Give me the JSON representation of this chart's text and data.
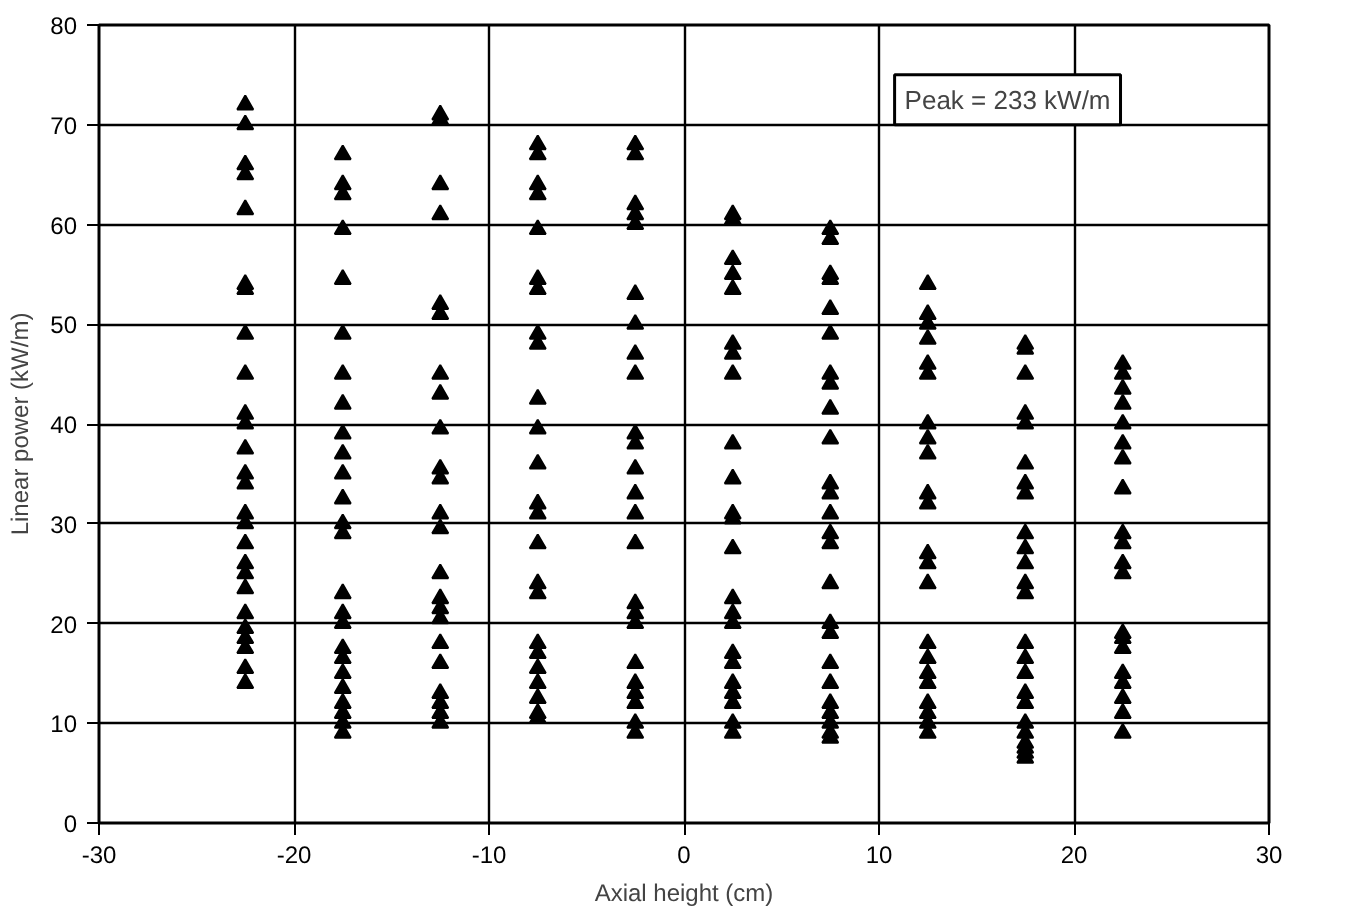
{
  "chart_data": {
    "type": "scatter",
    "xlabel": "Axial height (cm)",
    "ylabel": "Linear power (kW/m)",
    "xlim": [
      -30,
      30
    ],
    "xticks": [
      -30,
      -20,
      -10,
      0,
      10,
      20,
      30
    ],
    "ylim": [
      0,
      80
    ],
    "yticks": [
      0,
      10,
      20,
      30,
      40,
      50,
      60,
      70,
      80
    ],
    "grid": true,
    "marker": "triangle",
    "annotations": [
      "Peak = 233 kW/m"
    ],
    "series": [
      {
        "color": "#000000",
        "x": [
          -22.5,
          -22.5,
          -22.5,
          -22.5,
          -22.5,
          -22.5,
          -22.5,
          -22.5,
          -22.5,
          -22.5,
          -22.5,
          -22.5,
          -22.5,
          -22.5,
          -22.5,
          -22.5,
          -22.5,
          -22.5,
          -22.5,
          -22.5,
          -22.5,
          -22.5,
          -22.5,
          -22.5,
          -22.5,
          -22.5,
          -17.5,
          -17.5,
          -17.5,
          -17.5,
          -17.5,
          -17.5,
          -17.5,
          -17.5,
          -17.5,
          -17.5,
          -17.5,
          -17.5,
          -17.5,
          -17.5,
          -17.5,
          -17.5,
          -17.5,
          -17.5,
          -17.5,
          -17.5,
          -17.5,
          -17.5,
          -17.5,
          -17.5,
          -17.5,
          -12.5,
          -12.5,
          -12.5,
          -12.5,
          -12.5,
          -12.5,
          -12.5,
          -12.5,
          -12.5,
          -12.5,
          -12.5,
          -12.5,
          -12.5,
          -12.5,
          -12.5,
          -12.5,
          -12.5,
          -12.5,
          -12.5,
          -12.5,
          -12.5,
          -12.5,
          -12.5,
          -7.5,
          -7.5,
          -7.5,
          -7.5,
          -7.5,
          -7.5,
          -7.5,
          -7.5,
          -7.5,
          -7.5,
          -7.5,
          -7.5,
          -7.5,
          -7.5,
          -7.5,
          -7.5,
          -7.5,
          -7.5,
          -7.5,
          -7.5,
          -7.5,
          -7.5,
          -7.5,
          -7.5,
          -2.5,
          -2.5,
          -2.5,
          -2.5,
          -2.5,
          -2.5,
          -2.5,
          -2.5,
          -2.5,
          -2.5,
          -2.5,
          -2.5,
          -2.5,
          -2.5,
          -2.5,
          -2.5,
          -2.5,
          -2.5,
          -2.5,
          -2.5,
          -2.5,
          -2.5,
          -2.5,
          -2.5,
          2.5,
          2.5,
          2.5,
          2.5,
          2.5,
          2.5,
          2.5,
          2.5,
          2.5,
          2.5,
          2.5,
          2.5,
          2.5,
          2.5,
          2.5,
          2.5,
          2.5,
          2.5,
          2.5,
          2.5,
          2.5,
          2.5,
          2.5,
          7.5,
          7.5,
          7.5,
          7.5,
          7.5,
          7.5,
          7.5,
          7.5,
          7.5,
          7.5,
          7.5,
          7.5,
          7.5,
          7.5,
          7.5,
          7.5,
          7.5,
          7.5,
          7.5,
          7.5,
          7.5,
          7.5,
          7.5,
          7.5,
          7.5,
          12.5,
          12.5,
          12.5,
          12.5,
          12.5,
          12.5,
          12.5,
          12.5,
          12.5,
          12.5,
          12.5,
          12.5,
          12.5,
          12.5,
          12.5,
          12.5,
          12.5,
          12.5,
          12.5,
          12.5,
          12.5,
          12.5,
          17.5,
          17.5,
          17.5,
          17.5,
          17.5,
          17.5,
          17.5,
          17.5,
          17.5,
          17.5,
          17.5,
          17.5,
          17.5,
          17.5,
          17.5,
          17.5,
          17.5,
          17.5,
          17.5,
          17.5,
          17.5,
          17.5,
          17.5,
          17.5,
          22.5,
          22.5,
          22.5,
          22.5,
          22.5,
          22.5,
          22.5,
          22.5,
          22.5,
          22.5,
          22.5,
          22.5,
          22.5,
          22.5,
          22.5,
          22.5,
          22.5,
          22.5,
          22.5,
          22.5
        ],
        "values": [
          72,
          70,
          66,
          65,
          61.5,
          54,
          53.5,
          49,
          45,
          41,
          40,
          37.5,
          35,
          34,
          31,
          30,
          28,
          26,
          25,
          23.5,
          21,
          19.5,
          18.5,
          17.5,
          15.5,
          14,
          67,
          64,
          63,
          59.5,
          54.5,
          49,
          45,
          42,
          39,
          37,
          35,
          32.5,
          30,
          29,
          23,
          21,
          20,
          17.5,
          16.5,
          15,
          13.5,
          12,
          11,
          10,
          9,
          71,
          70.5,
          64,
          61,
          52,
          51,
          45,
          43,
          39.5,
          35.5,
          34.5,
          31,
          29.5,
          25,
          22.5,
          21.5,
          20.5,
          18,
          16,
          13,
          12,
          11,
          10,
          68,
          67,
          64,
          63,
          59.5,
          54.5,
          53.5,
          49,
          48,
          42.5,
          39.5,
          36,
          32,
          31,
          28,
          24,
          23,
          18,
          17,
          15.5,
          14,
          12.5,
          11,
          10.5,
          68,
          67,
          62,
          61,
          60,
          53,
          50,
          47,
          45,
          39,
          38,
          35.5,
          33,
          31,
          28,
          22,
          21,
          20,
          16,
          14,
          13,
          12,
          10,
          9,
          61,
          60.5,
          56.5,
          55,
          53.5,
          48,
          47,
          45,
          38,
          34.5,
          31,
          30.5,
          27.5,
          22.5,
          21,
          20,
          17,
          16,
          14,
          13,
          12,
          10,
          9,
          59.5,
          58.5,
          55,
          54.5,
          51.5,
          49,
          45,
          44,
          41.5,
          38.5,
          34,
          33,
          31,
          29,
          28,
          24,
          20,
          19,
          16,
          14,
          12,
          11,
          10,
          9,
          8.5,
          54,
          51,
          50,
          48.5,
          46,
          45,
          40,
          38.5,
          37,
          33,
          32,
          27,
          26,
          24,
          18,
          16.5,
          15,
          14,
          12,
          11,
          10,
          9,
          48,
          47.5,
          45,
          41,
          40,
          36,
          34,
          33,
          29,
          27.5,
          26,
          24,
          23,
          18,
          16.5,
          15,
          13,
          12,
          10,
          9,
          8,
          7.5,
          7,
          6.5,
          46,
          45,
          43.5,
          42,
          40,
          38,
          36.5,
          33.5,
          29,
          28,
          26,
          25,
          19,
          18.5,
          17.5,
          15,
          14,
          12.5,
          11,
          9
        ]
      }
    ]
  }
}
